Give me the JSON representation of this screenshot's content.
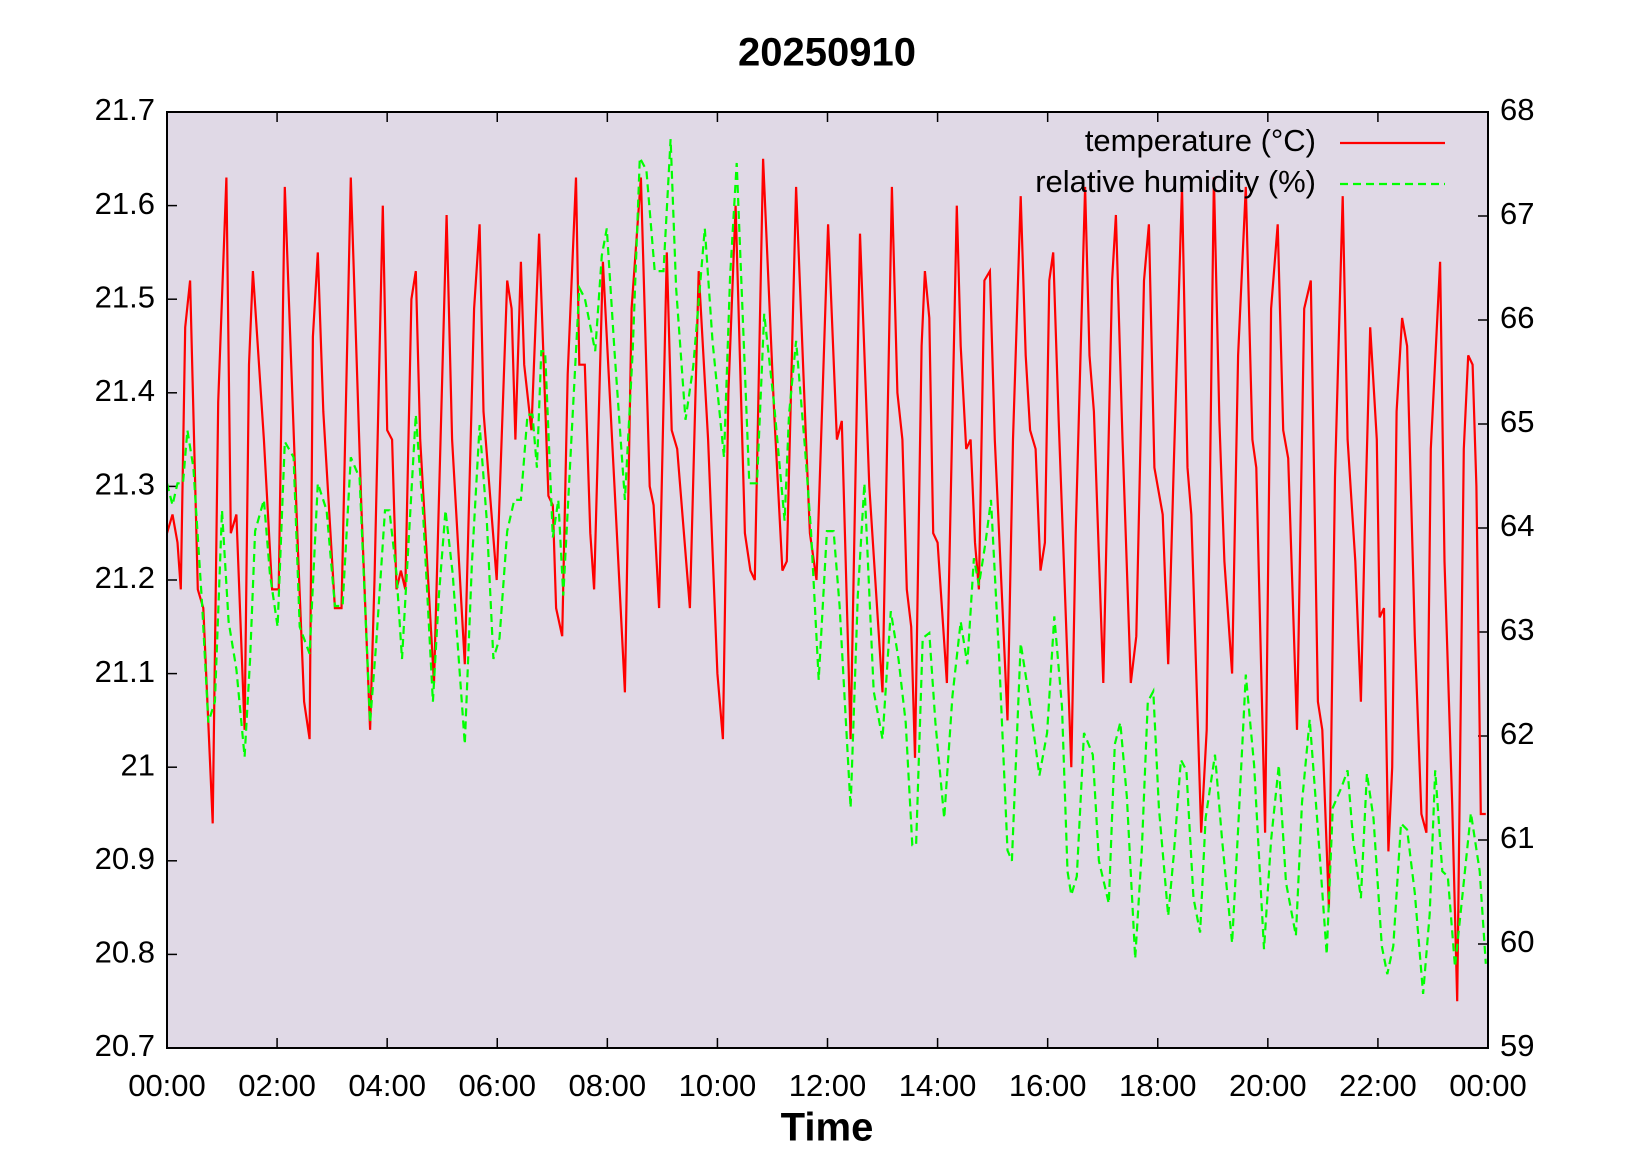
{
  "chart_data": {
    "type": "line",
    "title": "20250910",
    "xlabel": "Time",
    "xlim": [
      0,
      24
    ],
    "xticks": [
      {
        "value": 0,
        "label": "00:00"
      },
      {
        "value": 2,
        "label": "02:00"
      },
      {
        "value": 4,
        "label": "04:00"
      },
      {
        "value": 6,
        "label": "06:00"
      },
      {
        "value": 8,
        "label": "08:00"
      },
      {
        "value": 10,
        "label": "10:00"
      },
      {
        "value": 12,
        "label": "12:00"
      },
      {
        "value": 14,
        "label": "14:00"
      },
      {
        "value": 16,
        "label": "16:00"
      },
      {
        "value": 18,
        "label": "18:00"
      },
      {
        "value": 20,
        "label": "20:00"
      },
      {
        "value": 22,
        "label": "22:00"
      },
      {
        "value": 24,
        "label": "00:00"
      }
    ],
    "ylim": [
      20.7,
      21.7
    ],
    "yticks": [
      20.7,
      20.8,
      20.9,
      21,
      21.1,
      21.2,
      21.3,
      21.4,
      21.5,
      21.6,
      21.7
    ],
    "y2lim": [
      59,
      68
    ],
    "y2ticks": [
      59,
      60,
      61,
      62,
      63,
      64,
      65,
      66,
      67,
      68
    ],
    "legend": "upper right",
    "background": "#e0d9e6",
    "series": [
      {
        "name": "temperature (°C)",
        "color": "#ff0000",
        "dash": "solid",
        "x": [
          0,
          0.1,
          0.19,
          0.25,
          0.33,
          0.42,
          0.56,
          0.66,
          0.83,
          0.93,
          1.08,
          1.16,
          1.26,
          1.41,
          1.49,
          1.56,
          1.76,
          1.91,
          2.03,
          2.14,
          2.38,
          2.49,
          2.59,
          2.65,
          2.74,
          2.84,
          3.05,
          3.17,
          3.34,
          3.53,
          3.69,
          3.77,
          3.92,
          4.0,
          4.09,
          4.17,
          4.25,
          4.33,
          4.44,
          4.52,
          4.6,
          4.85,
          5.08,
          5.18,
          5.41,
          5.58,
          5.68,
          5.75,
          5.99,
          6.18,
          6.26,
          6.33,
          6.43,
          6.49,
          6.62,
          6.76,
          6.93,
          7.01,
          7.07,
          7.18,
          7.28,
          7.43,
          7.49,
          7.59,
          7.69,
          7.76,
          7.92,
          8.13,
          8.32,
          8.44,
          8.61,
          8.77,
          8.84,
          8.94,
          9.08,
          9.17,
          9.27,
          9.5,
          9.66,
          9.83,
          10.0,
          10.1,
          10.2,
          10.33,
          10.5,
          10.6,
          10.68,
          10.83,
          11.03,
          11.18,
          11.26,
          11.43,
          11.61,
          11.68,
          11.8,
          12.01,
          12.17,
          12.26,
          12.42,
          12.59,
          12.76,
          13.0,
          13.17,
          13.27,
          13.36,
          13.44,
          13.52,
          13.59,
          13.71,
          13.77,
          13.85,
          13.92,
          14.0,
          14.17,
          14.35,
          14.42,
          14.52,
          14.6,
          14.68,
          14.75,
          14.85,
          14.95,
          15.04,
          15.18,
          15.27,
          15.37,
          15.51,
          15.6,
          15.68,
          15.78,
          15.87,
          15.95,
          16.03,
          16.1,
          16.2,
          16.43,
          16.51,
          16.68,
          16.76,
          16.84,
          17.01,
          17.17,
          17.24,
          17.36,
          17.51,
          17.61,
          17.75,
          17.84,
          17.94,
          18.09,
          18.19,
          18.29,
          18.44,
          18.54,
          18.61,
          18.79,
          18.89,
          19.02,
          19.12,
          19.21,
          19.35,
          19.46,
          19.6,
          19.72,
          19.79,
          19.95,
          20.06,
          20.18,
          20.28,
          20.37,
          20.53,
          20.66,
          20.78,
          20.91,
          20.99,
          21.11,
          21.22,
          21.36,
          21.45,
          21.59,
          21.69,
          21.76,
          21.86,
          21.98,
          22.03,
          22.11,
          22.19,
          22.26,
          22.34,
          22.44,
          22.53,
          22.67,
          22.79,
          22.88,
          22.96,
          23.13,
          23.21,
          23.35,
          23.44,
          23.56,
          23.64,
          23.72,
          23.79,
          23.87,
          23.96
        ],
        "values": [
          21.25,
          21.27,
          21.24,
          21.19,
          21.47,
          21.52,
          21.19,
          21.17,
          20.94,
          21.39,
          21.63,
          21.25,
          21.27,
          21.04,
          21.43,
          21.53,
          21.35,
          21.19,
          21.19,
          21.62,
          21.23,
          21.07,
          21.03,
          21.46,
          21.55,
          21.38,
          21.17,
          21.17,
          21.63,
          21.28,
          21.04,
          21.2,
          21.6,
          21.36,
          21.35,
          21.19,
          21.21,
          21.19,
          21.5,
          21.53,
          21.35,
          21.09,
          21.59,
          21.35,
          21.11,
          21.49,
          21.58,
          21.38,
          21.2,
          21.52,
          21.49,
          21.35,
          21.54,
          21.43,
          21.36,
          21.57,
          21.29,
          21.28,
          21.17,
          21.14,
          21.42,
          21.63,
          21.43,
          21.43,
          21.25,
          21.19,
          21.54,
          21.3,
          21.08,
          21.49,
          21.63,
          21.3,
          21.28,
          21.17,
          21.55,
          21.36,
          21.34,
          21.17,
          21.53,
          21.35,
          21.1,
          21.03,
          21.4,
          21.6,
          21.25,
          21.21,
          21.2,
          21.65,
          21.38,
          21.21,
          21.22,
          21.62,
          21.35,
          21.25,
          21.2,
          21.58,
          21.35,
          21.37,
          21.03,
          21.57,
          21.3,
          21.08,
          21.62,
          21.4,
          21.35,
          21.19,
          21.15,
          21.01,
          21.45,
          21.53,
          21.48,
          21.25,
          21.24,
          21.09,
          21.6,
          21.45,
          21.34,
          21.35,
          21.24,
          21.19,
          21.52,
          21.53,
          21.35,
          21.17,
          21.05,
          21.35,
          21.61,
          21.44,
          21.36,
          21.34,
          21.21,
          21.24,
          21.52,
          21.55,
          21.37,
          21.0,
          21.25,
          21.62,
          21.44,
          21.38,
          21.09,
          21.52,
          21.59,
          21.35,
          21.09,
          21.14,
          21.52,
          21.58,
          21.32,
          21.27,
          21.11,
          21.32,
          21.62,
          21.32,
          21.27,
          20.93,
          21.04,
          21.63,
          21.37,
          21.22,
          21.1,
          21.44,
          21.62,
          21.35,
          21.32,
          20.93,
          21.49,
          21.58,
          21.36,
          21.33,
          21.04,
          21.49,
          21.52,
          21.07,
          21.04,
          20.85,
          21.31,
          21.61,
          21.35,
          21.22,
          21.07,
          21.25,
          21.47,
          21.35,
          21.16,
          21.17,
          20.91,
          21.0,
          21.38,
          21.48,
          21.45,
          21.14,
          20.95,
          20.93,
          21.34,
          21.54,
          21.22,
          20.96,
          20.75,
          21.34,
          21.44,
          21.43,
          21.3,
          20.95,
          20.95
        ]
      },
      {
        "name": "relative humidity (%)",
        "color": "#00ff00",
        "dash": "dashed",
        "axis": "y2",
        "x": [
          0,
          0.1,
          0.19,
          0.29,
          0.37,
          0.48,
          0.64,
          0.75,
          0.87,
          1.0,
          1.12,
          1.26,
          1.41,
          1.51,
          1.6,
          1.76,
          1.87,
          2.01,
          2.14,
          2.3,
          2.41,
          2.59,
          2.74,
          2.9,
          3.05,
          3.19,
          3.34,
          3.5,
          3.69,
          3.8,
          3.96,
          4.04,
          4.17,
          4.27,
          4.4,
          4.52,
          4.65,
          4.83,
          4.94,
          5.06,
          5.19,
          5.41,
          5.54,
          5.68,
          5.81,
          5.93,
          6.04,
          6.18,
          6.31,
          6.43,
          6.55,
          6.64,
          6.72,
          6.8,
          6.87,
          7.01,
          7.11,
          7.2,
          7.34,
          7.49,
          7.59,
          7.78,
          7.9,
          7.99,
          8.13,
          8.32,
          8.46,
          8.59,
          8.71,
          8.86,
          9.02,
          9.15,
          9.25,
          9.42,
          9.56,
          9.77,
          9.91,
          10.12,
          10.23,
          10.35,
          10.58,
          10.72,
          10.85,
          11.03,
          11.22,
          11.3,
          11.43,
          11.59,
          11.7,
          11.84,
          11.99,
          12.11,
          12.22,
          12.42,
          12.55,
          12.67,
          12.84,
          13.0,
          13.15,
          13.29,
          13.42,
          13.54,
          13.61,
          13.73,
          13.85,
          13.96,
          14.12,
          14.27,
          14.42,
          14.54,
          14.66,
          14.75,
          14.87,
          14.97,
          15.12,
          15.27,
          15.35,
          15.51,
          15.66,
          15.85,
          15.99,
          16.12,
          16.26,
          16.36,
          16.43,
          16.53,
          16.66,
          16.82,
          16.93,
          17.11,
          17.22,
          17.32,
          17.44,
          17.59,
          17.71,
          17.82,
          17.92,
          18.02,
          18.19,
          18.29,
          18.42,
          18.52,
          18.65,
          18.77,
          18.87,
          19.04,
          19.17,
          19.35,
          19.46,
          19.6,
          19.75,
          19.93,
          20.06,
          20.2,
          20.33,
          20.51,
          20.62,
          20.76,
          20.91,
          21.07,
          21.18,
          21.34,
          21.45,
          21.55,
          21.69,
          21.8,
          21.92,
          22.07,
          22.17,
          22.28,
          22.42,
          22.53,
          22.67,
          22.82,
          22.94,
          23.04,
          23.17,
          23.27,
          23.4,
          23.52,
          23.69,
          23.85,
          23.96
        ],
        "values": [
          64.43,
          64.22,
          64.43,
          64.43,
          64.94,
          64.58,
          63.25,
          62.13,
          62.33,
          64.17,
          63.1,
          62.64,
          61.8,
          62.74,
          63.97,
          64.27,
          63.56,
          63.05,
          64.83,
          64.68,
          63.05,
          62.79,
          64.43,
          64.17,
          63.25,
          63.25,
          64.68,
          64.48,
          62.13,
          62.89,
          64.17,
          64.17,
          63.56,
          62.74,
          63.97,
          65.09,
          64.17,
          62.33,
          63.35,
          64.17,
          63.56,
          61.92,
          63.66,
          64.99,
          64.07,
          62.74,
          62.94,
          63.97,
          64.27,
          64.27,
          65.09,
          65.09,
          64.58,
          65.7,
          65.7,
          63.91,
          64.27,
          63.35,
          64.78,
          66.31,
          66.21,
          65.7,
          66.62,
          66.88,
          65.7,
          64.27,
          65.7,
          67.56,
          67.44,
          66.47,
          66.47,
          67.74,
          66.31,
          65.04,
          65.55,
          66.88,
          65.8,
          64.68,
          66.42,
          67.51,
          64.43,
          64.43,
          66.06,
          65.19,
          64.07,
          65.09,
          65.8,
          64.78,
          63.97,
          62.54,
          63.97,
          63.97,
          63.25,
          61.31,
          63.35,
          64.43,
          62.43,
          61.97,
          63.2,
          62.74,
          62.13,
          60.95,
          60.95,
          62.94,
          62.99,
          62.13,
          61.21,
          62.38,
          63.1,
          62.69,
          63.71,
          63.45,
          63.86,
          64.27,
          62.74,
          60.9,
          60.8,
          62.89,
          62.38,
          61.62,
          62.03,
          63.15,
          62.28,
          60.7,
          60.47,
          60.65,
          62.03,
          61.82,
          60.8,
          60.39,
          61.92,
          62.13,
          61.41,
          59.86,
          60.9,
          62.33,
          62.43,
          61.31,
          60.27,
          60.85,
          61.77,
          61.67,
          60.44,
          60.11,
          61.21,
          61.82,
          61.0,
          60.01,
          61.1,
          62.59,
          61.72,
          59.95,
          61.0,
          61.72,
          60.59,
          60.08,
          61.36,
          62.16,
          61.1,
          59.9,
          61.31,
          61.51,
          61.67,
          61.0,
          60.44,
          61.64,
          61.21,
          59.98,
          59.71,
          59.98,
          61.16,
          61.1,
          60.49,
          59.52,
          60.29,
          61.67,
          60.7,
          60.65,
          59.78,
          60.39,
          61.26,
          60.7,
          59.81
        ]
      }
    ]
  }
}
